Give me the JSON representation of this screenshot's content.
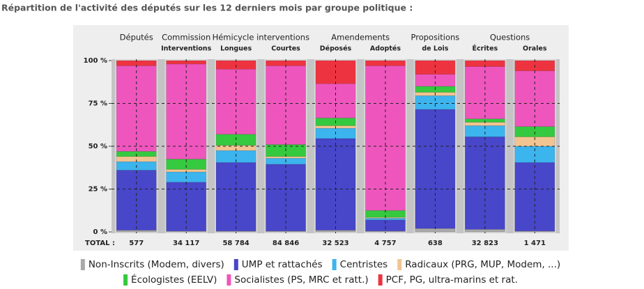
{
  "chart_data": {
    "type": "stacked_bar_percent",
    "title": "Répartition de l'activité des députés sur les 12 derniers mois par groupe politique :",
    "groups": [
      {
        "name": "Députés",
        "categories": [
          null
        ]
      },
      {
        "name": "Commission",
        "categories": [
          "Interventions"
        ]
      },
      {
        "name": "Hémicycle interventions",
        "categories": [
          "Longues",
          "Courtes"
        ]
      },
      {
        "name": "Amendements",
        "categories": [
          "Déposés",
          "Adoptés"
        ]
      },
      {
        "name": "Propositions",
        "categories": [
          "de Lois"
        ]
      },
      {
        "name": "Questions",
        "categories": [
          "Écrites",
          "Orales"
        ]
      }
    ],
    "series": [
      {
        "name": "Non-Inscrits (Modem, divers)",
        "color": "#a9a9a9",
        "values": [
          1,
          0.5,
          0.5,
          0.5,
          1,
          0.5,
          2,
          1.5,
          0.5
        ]
      },
      {
        "name": "UMP et rattachés",
        "color": "#4846c9",
        "values": [
          35,
          28.5,
          40,
          39,
          53.5,
          6.5,
          69.5,
          54,
          40
        ]
      },
      {
        "name": "Centristes",
        "color": "#3cb4ee",
        "values": [
          5,
          6,
          7,
          3.5,
          6,
          1,
          8,
          6.5,
          9.5
        ]
      },
      {
        "name": "Radicaux (PRG, MUP, Modem, ...)",
        "color": "#f2c491",
        "values": [
          3,
          1.5,
          3,
          1,
          1.5,
          0.5,
          2,
          2,
          5.5
        ]
      },
      {
        "name": "Écologistes (EELV)",
        "color": "#35c93f",
        "values": [
          3,
          6,
          6.5,
          7,
          4.5,
          4,
          3.5,
          2,
          6
        ]
      },
      {
        "name": "Socialistes (PS, MRC et ratt.)",
        "color": "#ee56bd",
        "values": [
          50,
          55.5,
          38,
          46,
          20,
          84.5,
          7,
          30.5,
          32.5
        ]
      },
      {
        "name": "PCF, PG, ultra-marins et rat.",
        "color": "#ee3340",
        "values": [
          3,
          2,
          5,
          3,
          13.5,
          3,
          8,
          3.5,
          6
        ]
      }
    ],
    "totals": {
      "label": "TOTAL :",
      "values": [
        577,
        34117,
        58784,
        84846,
        32523,
        4757,
        638,
        32823,
        1471
      ],
      "value_labels": [
        "577",
        "34 117",
        "58 784",
        "84 846",
        "32 523",
        "4 757",
        "638",
        "32 823",
        "1 471"
      ]
    },
    "ylim": [
      0,
      100
    ],
    "yticks": [
      {
        "value": 0,
        "label": "0 %"
      },
      {
        "value": 25,
        "label": "25 %"
      },
      {
        "value": 50,
        "label": "50 %"
      },
      {
        "value": 75,
        "label": "75 %"
      },
      {
        "value": 100,
        "label": "100 %"
      }
    ],
    "grid": true
  }
}
